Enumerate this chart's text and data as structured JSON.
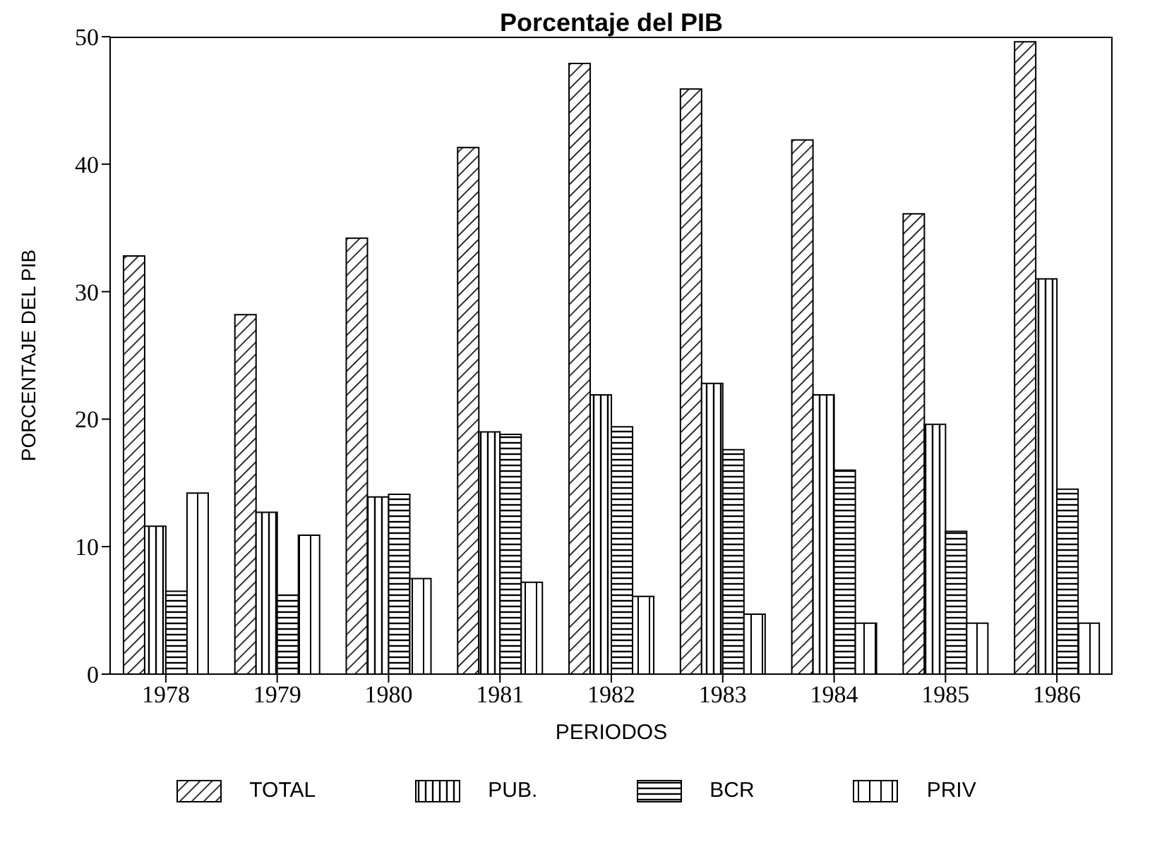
{
  "chart_data": {
    "type": "bar",
    "title": "Porcentaje del PIB",
    "xlabel": "PERIODOS",
    "ylabel": "PORCENTAJE DEL PIB",
    "categories": [
      "1978",
      "1979",
      "1980",
      "1981",
      "1982",
      "1983",
      "1984",
      "1985",
      "1986"
    ],
    "series": [
      {
        "name": "TOTAL",
        "color": "#000000",
        "values": [
          32.8,
          28.2,
          34.2,
          41.3,
          47.9,
          45.9,
          41.9,
          36.1,
          49.6
        ]
      },
      {
        "name": "PUB.",
        "color": "#000000",
        "values": [
          11.6,
          12.7,
          13.9,
          19.0,
          21.9,
          22.8,
          21.9,
          19.6,
          31.0
        ]
      },
      {
        "name": "BCR",
        "color": "#000000",
        "values": [
          6.5,
          6.2,
          14.1,
          18.8,
          19.4,
          17.6,
          16.0,
          11.2,
          14.5
        ]
      },
      {
        "name": "PRIV",
        "color": "#000000",
        "values": [
          14.2,
          10.9,
          7.5,
          7.2,
          6.1,
          4.7,
          4.0,
          4.0,
          4.0
        ]
      }
    ],
    "ylim": [
      0,
      50
    ],
    "yticks": [
      0,
      10,
      20,
      30,
      40,
      50
    ],
    "grid": false,
    "legend": "bottom"
  }
}
